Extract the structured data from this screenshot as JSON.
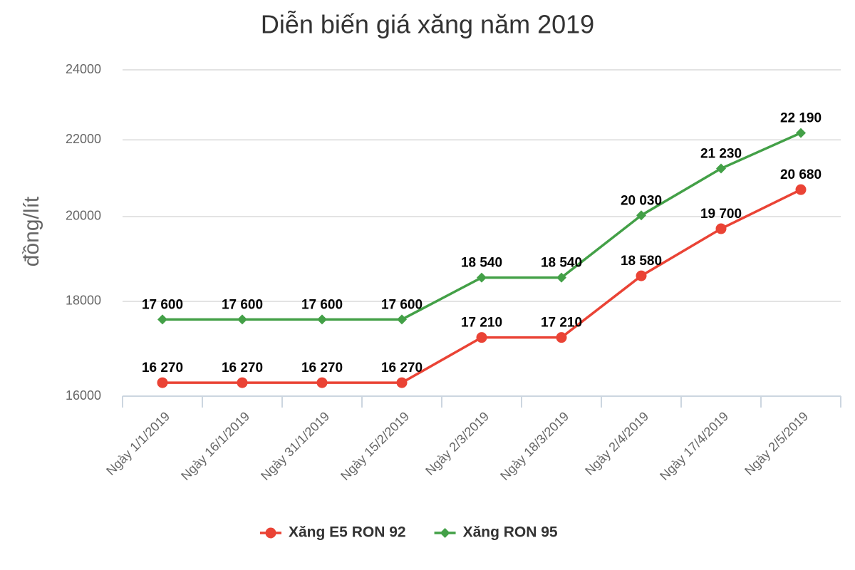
{
  "chart_data": {
    "type": "line",
    "title": "Diễn biến giá xăng năm 2019",
    "y_label": "đồng/lít",
    "categories": [
      "Ngày 1/1/2019",
      "Ngày 16/1/2019",
      "Ngày 31/1/2019",
      "Ngày 15/2/2019",
      "Ngày 2/3/2019",
      "Ngày 18/3/2019",
      "Ngày 2/4/2019",
      "Ngày 17/4/2019",
      "Ngày 2/5/2019"
    ],
    "series": [
      {
        "name": "Xăng E5 RON 92",
        "color": "#ea4335",
        "marker": "circle",
        "values": [
          16270,
          16270,
          16270,
          16270,
          17210,
          17210,
          18580,
          19700,
          20680
        ],
        "value_labels": [
          "16 270",
          "16 270",
          "16 270",
          "16 270",
          "17 210",
          "17 210",
          "18 580",
          "19 700",
          "20 680"
        ]
      },
      {
        "name": "Xăng RON 95",
        "color": "#43a047",
        "marker": "diamond",
        "values": [
          17600,
          17600,
          17600,
          17600,
          18540,
          18540,
          20030,
          21230,
          22190
        ],
        "value_labels": [
          "17 600",
          "17 600",
          "17 600",
          "17 600",
          "18 540",
          "18 540",
          "20 030",
          "21 230",
          "22 190"
        ]
      }
    ],
    "ylim": [
      16000,
      24000
    ],
    "yticks": [
      16000,
      18000,
      20000,
      22000,
      24000
    ],
    "log_scale": true,
    "grid": true,
    "legend": "bottom"
  }
}
